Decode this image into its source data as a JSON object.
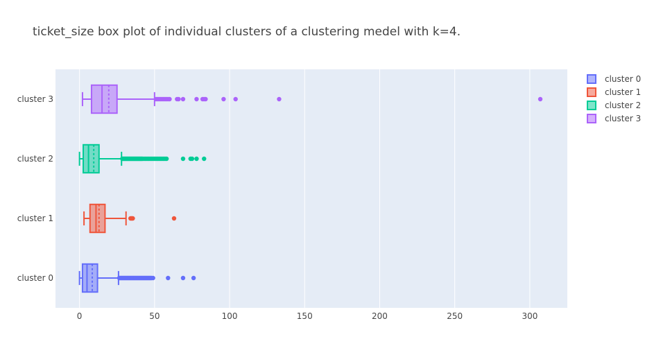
{
  "chart_data": {
    "type": "box",
    "orientation": "horizontal",
    "title": "ticket_size box plot of individual clusters of a clustering medel with k=4.",
    "xlabel": "",
    "ylabel": "",
    "xlim": [
      -16,
      325
    ],
    "x_ticks": [
      0,
      50,
      100,
      150,
      200,
      250,
      300
    ],
    "grid": true,
    "legend_position": "right",
    "series": [
      {
        "name": "cluster 0",
        "category": "cluster 0",
        "color": "#636efa",
        "min": 0,
        "q1": 2,
        "median": 5,
        "mean": 8.5,
        "q3": 12,
        "upper_fence": 26,
        "outliers": [
          26.5,
          27,
          27.5,
          28,
          28.5,
          29,
          29.5,
          30,
          30.5,
          31,
          31.5,
          32,
          32.5,
          33,
          33.5,
          34,
          34.5,
          35,
          35.5,
          36,
          36.5,
          37,
          37.5,
          38,
          38.5,
          39,
          39.5,
          40,
          40.5,
          41,
          41.5,
          42,
          42.5,
          43,
          43.5,
          44,
          44.5,
          45,
          45.5,
          46,
          46.5,
          47,
          47.5,
          48,
          49,
          59,
          69,
          76
        ]
      },
      {
        "name": "cluster 1",
        "category": "cluster 1",
        "color": "#ef553b",
        "min": 3,
        "q1": 7,
        "median": 11,
        "mean": 13,
        "q3": 17,
        "upper_fence": 31,
        "outliers": [
          34,
          34.5,
          35,
          35.5,
          63
        ]
      },
      {
        "name": "cluster 2",
        "category": "cluster 2",
        "color": "#00cc96",
        "min": 0,
        "q1": 2.5,
        "median": 6,
        "mean": 9.5,
        "q3": 13,
        "upper_fence": 28,
        "outliers": [
          28.5,
          29,
          29.5,
          30,
          30.5,
          31,
          31.5,
          32,
          32.5,
          33,
          33.5,
          34,
          34.5,
          35,
          35.5,
          36,
          36.5,
          37,
          37.5,
          38,
          38.5,
          39,
          39.5,
          40,
          40.5,
          41,
          41.5,
          42,
          43,
          44,
          45,
          46,
          47,
          48,
          49,
          50,
          51,
          52,
          53,
          54,
          55,
          56,
          57,
          58,
          69,
          74,
          75,
          78,
          83
        ]
      },
      {
        "name": "cluster 3",
        "category": "cluster 3",
        "color": "#ab63fa",
        "min": 2,
        "q1": 8,
        "median": 15,
        "mean": 19.5,
        "q3": 25,
        "upper_fence": 50,
        "outliers": [
          51,
          52,
          53,
          54,
          55,
          56,
          57,
          58,
          59,
          60,
          65,
          66,
          69,
          78,
          82,
          83,
          84,
          96,
          104,
          133,
          307
        ]
      }
    ]
  }
}
